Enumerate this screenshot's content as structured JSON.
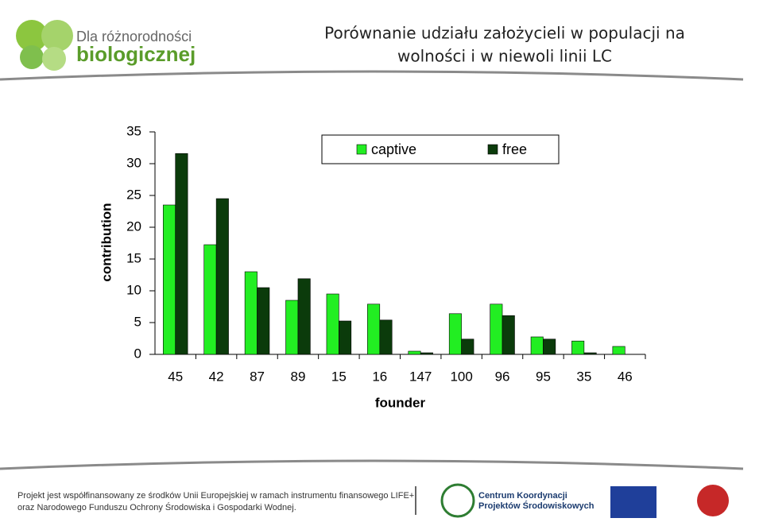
{
  "header": {
    "title": [
      "Porównanie udziału założycieli w populacji na",
      "wolności i w niewoli linii LC"
    ],
    "logo": [
      "Dla różnorodności",
      "biologicznej"
    ]
  },
  "chart_data": {
    "type": "bar",
    "x_label": "founder",
    "y_label": "contribution",
    "categories": [
      "45",
      "42",
      "87",
      "89",
      "15",
      "16",
      "147",
      "100",
      "96",
      "95",
      "35",
      "46"
    ],
    "series": [
      {
        "name": "captive",
        "color": "#22ee22",
        "values": [
          23.5,
          17.25,
          13,
          8.5,
          9.5,
          7.9,
          0.5,
          6.4,
          7.9,
          2.75,
          2.1,
          1.25
        ]
      },
      {
        "name": "free",
        "color": "#0b3b0b",
        "values": [
          31.6,
          24.5,
          10.5,
          11.9,
          5.25,
          5.4,
          0.25,
          2.4,
          6.1,
          2.4,
          0.25,
          0
        ]
      }
    ],
    "ylim": [
      0,
      35
    ],
    "yticks": [
      0,
      5,
      10,
      15,
      20,
      25,
      30,
      35
    ],
    "grid": false,
    "legend": "top"
  },
  "footer": {
    "text": [
      "Projekt jest współfinansowany ze środków Unii Europejskiej w ramach instrumentu finansowego LIFE+",
      "oraz Narodowego Funduszu Ochrony Środowiska i Gospodarki Wodnej."
    ],
    "partner": [
      "Centrum Koordynacji",
      "Projektów Środowiskowych"
    ]
  }
}
